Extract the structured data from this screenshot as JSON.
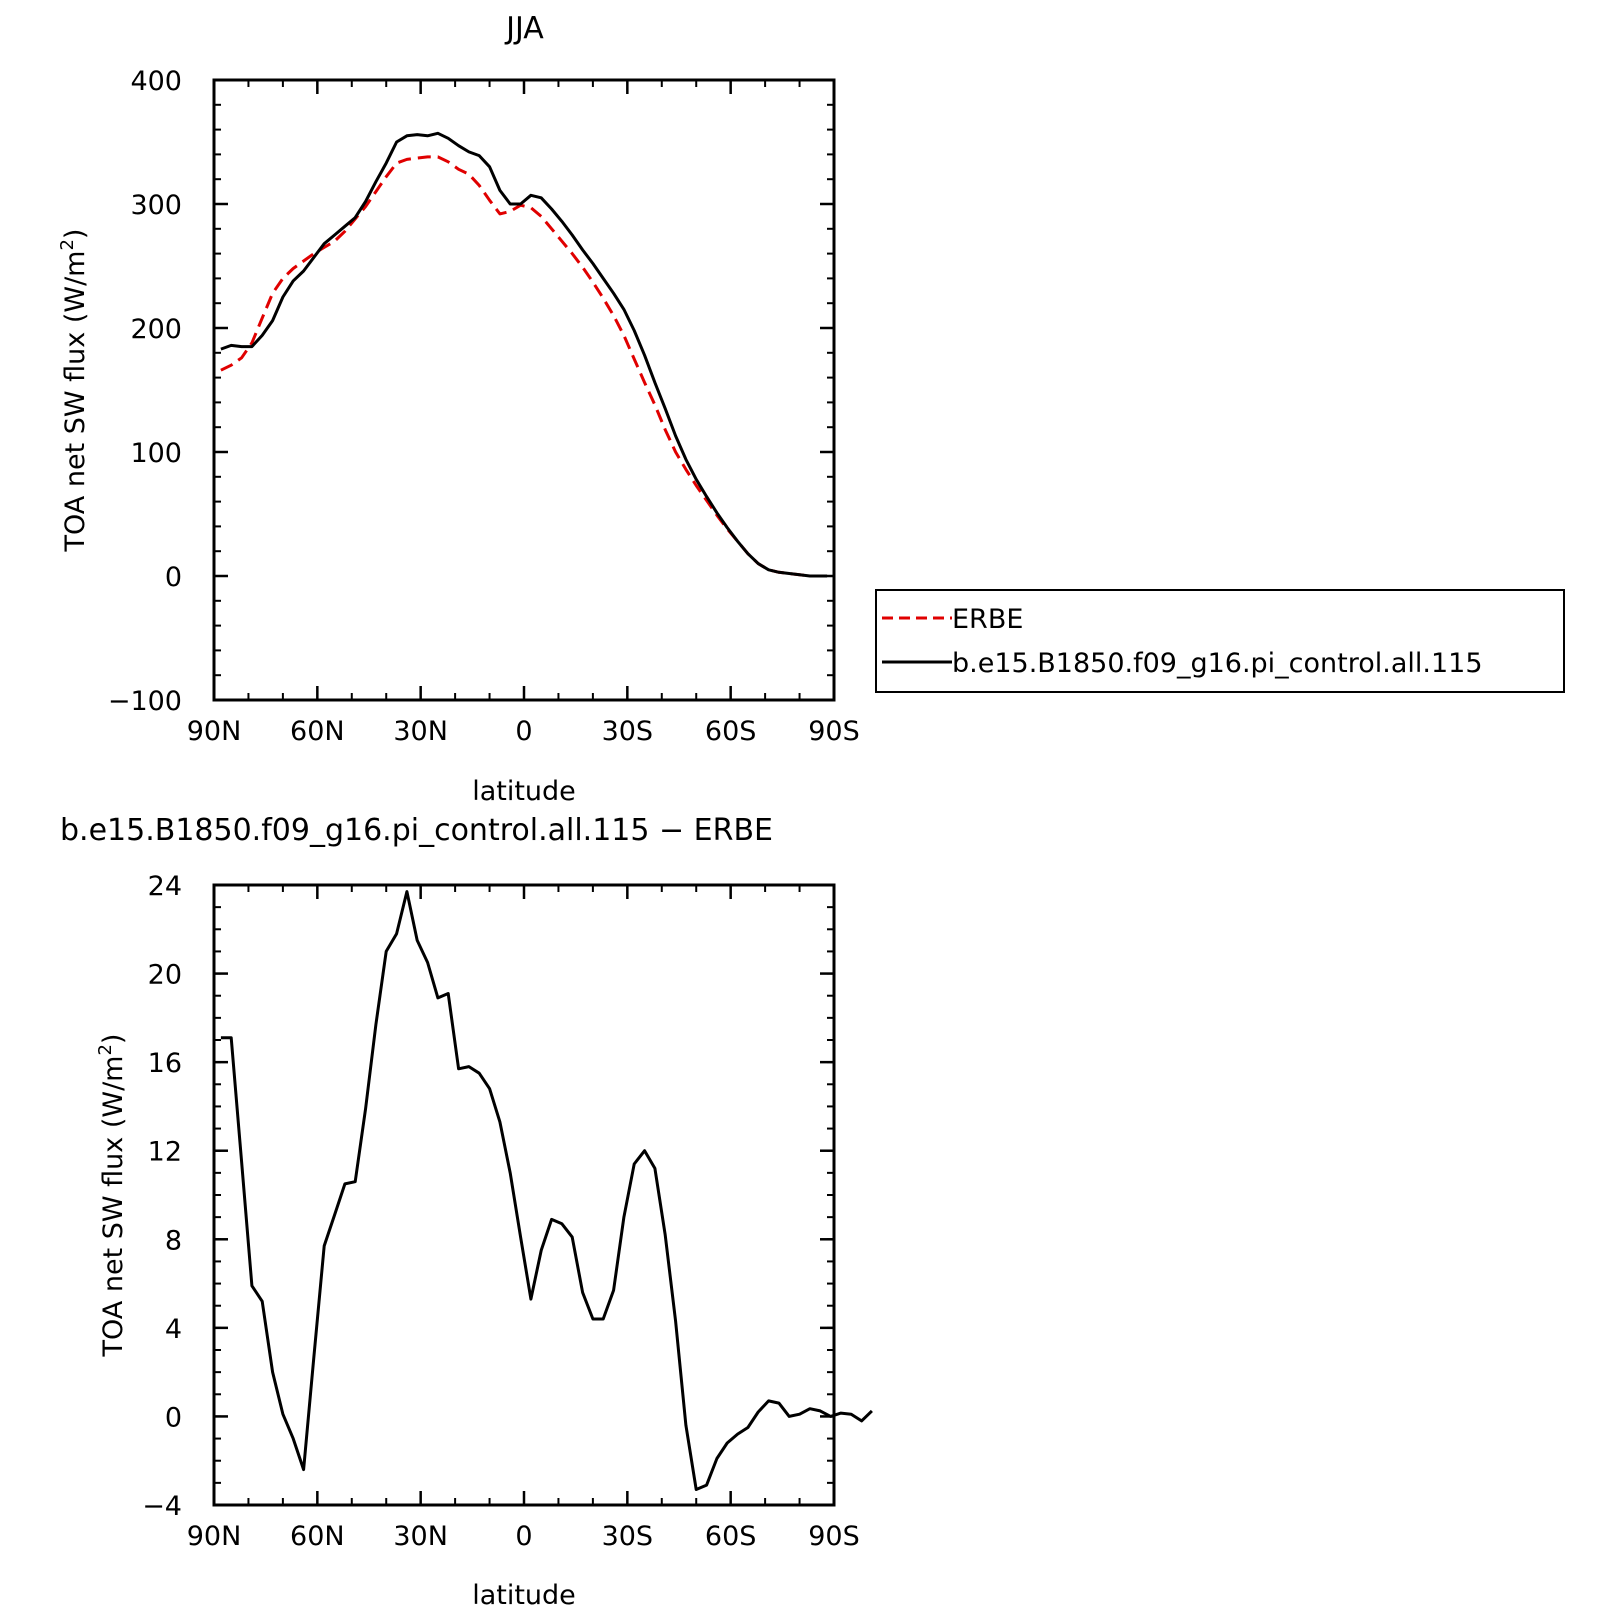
{
  "chart_data": [
    {
      "type": "line",
      "title": "JJA",
      "xlabel": "latitude",
      "ylabel": "TOA net SW flux (W/m²)",
      "ylabel_main": "TOA net SW flux (W/m",
      "ylabel_sup": "2",
      "ylabel_end": ")",
      "xlim": [
        90,
        -90
      ],
      "ylim": [
        -100,
        400
      ],
      "x_ticks": [
        {
          "value": 90,
          "label": "90N"
        },
        {
          "value": 60,
          "label": "60N"
        },
        {
          "value": 30,
          "label": "30N"
        },
        {
          "value": 0,
          "label": "0"
        },
        {
          "value": -30,
          "label": "30S"
        },
        {
          "value": -60,
          "label": "60S"
        },
        {
          "value": -90,
          "label": "90S"
        }
      ],
      "y_ticks": [
        {
          "value": -100,
          "label": "−100"
        },
        {
          "value": 0,
          "label": "0"
        },
        {
          "value": 100,
          "label": "100"
        },
        {
          "value": 200,
          "label": "200"
        },
        {
          "value": 300,
          "label": "300"
        },
        {
          "value": 400,
          "label": "400"
        }
      ],
      "legend": "right",
      "series": [
        {
          "name": "ERBE",
          "color": "#e00000",
          "dash": "dashed",
          "points": [
            [
              88,
              166
            ],
            [
              85,
              170
            ],
            [
              82,
              176
            ],
            [
              79,
              188
            ],
            [
              76,
              208
            ],
            [
              73,
              228
            ],
            [
              70,
              240
            ],
            [
              67,
              248
            ],
            [
              64,
              254
            ],
            [
              61,
              260
            ],
            [
              58,
              265
            ],
            [
              55,
              270
            ],
            [
              52,
              278
            ],
            [
              49,
              288
            ],
            [
              46,
              298
            ],
            [
              43,
              310
            ],
            [
              40,
              322
            ],
            [
              37,
              333
            ],
            [
              34,
              336
            ],
            [
              31,
              337
            ],
            [
              28,
              338
            ],
            [
              25,
              338
            ],
            [
              22,
              334
            ],
            [
              19,
              328
            ],
            [
              16,
              324
            ],
            [
              13,
              315
            ],
            [
              10,
              303
            ],
            [
              7,
              292
            ],
            [
              4,
              294
            ],
            [
              1,
              299
            ],
            [
              -2,
              297
            ],
            [
              -5,
              290
            ],
            [
              -8,
              280
            ],
            [
              -11,
              270
            ],
            [
              -14,
              260
            ],
            [
              -17,
              249
            ],
            [
              -20,
              237
            ],
            [
              -23,
              224
            ],
            [
              -26,
              210
            ],
            [
              -29,
              194
            ],
            [
              -32,
              175
            ],
            [
              -35,
              156
            ],
            [
              -38,
              138
            ],
            [
              -41,
              118
            ],
            [
              -44,
              100
            ],
            [
              -47,
              86
            ],
            [
              -50,
              73
            ],
            [
              -53,
              61
            ],
            [
              -56,
              49
            ],
            [
              -59,
              38
            ],
            [
              -62,
              28
            ],
            [
              -65,
              18
            ],
            [
              -68,
              10
            ],
            [
              -71,
              5
            ],
            [
              -74,
              3
            ],
            [
              -77,
              2
            ],
            [
              -80,
              1
            ],
            [
              -83,
              0
            ],
            [
              -86,
              0
            ],
            [
              -88,
              0
            ]
          ]
        },
        {
          "name": "b.e15.B1850.f09_g16.pi_control.all.115",
          "color": "#000000",
          "dash": "solid",
          "points": [
            [
              88,
              183
            ],
            [
              85,
              186
            ],
            [
              82,
              185
            ],
            [
              79,
              185
            ],
            [
              76,
              194
            ],
            [
              73,
              206
            ],
            [
              70,
              225
            ],
            [
              67,
              238
            ],
            [
              64,
              246
            ],
            [
              61,
              257
            ],
            [
              58,
              268
            ],
            [
              55,
              275
            ],
            [
              52,
              282
            ],
            [
              49,
              289
            ],
            [
              46,
              302
            ],
            [
              43,
              318
            ],
            [
              40,
              333
            ],
            [
              37,
              350
            ],
            [
              34,
              355
            ],
            [
              31,
              356
            ],
            [
              28,
              355
            ],
            [
              25,
              357
            ],
            [
              22,
              353
            ],
            [
              19,
              347
            ],
            [
              16,
              342
            ],
            [
              13,
              339
            ],
            [
              10,
              330
            ],
            [
              7,
              311
            ],
            [
              4,
              300
            ],
            [
              1,
              300
            ],
            [
              -2,
              307
            ],
            [
              -5,
              305
            ],
            [
              -8,
              296
            ],
            [
              -11,
              286
            ],
            [
              -14,
              275
            ],
            [
              -17,
              263
            ],
            [
              -20,
              252
            ],
            [
              -23,
              240
            ],
            [
              -26,
              228
            ],
            [
              -29,
              215
            ],
            [
              -32,
              198
            ],
            [
              -35,
              178
            ],
            [
              -38,
              156
            ],
            [
              -41,
              135
            ],
            [
              -44,
              113
            ],
            [
              -47,
              94
            ],
            [
              -50,
              78
            ],
            [
              -53,
              64
            ],
            [
              -56,
              51
            ],
            [
              -59,
              39
            ],
            [
              -62,
              28
            ],
            [
              -65,
              18
            ],
            [
              -68,
              10
            ],
            [
              -71,
              5
            ],
            [
              -74,
              3
            ],
            [
              -77,
              2
            ],
            [
              -80,
              1
            ],
            [
              -83,
              0
            ],
            [
              -86,
              0
            ],
            [
              -88,
              0
            ]
          ]
        }
      ]
    },
    {
      "type": "line",
      "title": "b.e15.B1850.f09_g16.pi_control.all.115 − ERBE",
      "xlabel": "latitude",
      "ylabel": "TOA net SW flux (W/m²)",
      "ylabel_main": "TOA net SW flux (W/m",
      "ylabel_sup": "2",
      "ylabel_end": ")",
      "xlim": [
        90,
        -90
      ],
      "ylim": [
        -4,
        24
      ],
      "x_ticks": [
        {
          "value": 90,
          "label": "90N"
        },
        {
          "value": 60,
          "label": "60N"
        },
        {
          "value": 30,
          "label": "30N"
        },
        {
          "value": 0,
          "label": "0"
        },
        {
          "value": -30,
          "label": "30S"
        },
        {
          "value": -60,
          "label": "60S"
        },
        {
          "value": -90,
          "label": "90S"
        }
      ],
      "y_ticks": [
        {
          "value": -4,
          "label": "−4"
        },
        {
          "value": 0,
          "label": "0"
        },
        {
          "value": 4,
          "label": "4"
        },
        {
          "value": 8,
          "label": "8"
        },
        {
          "value": 12,
          "label": "12"
        },
        {
          "value": 16,
          "label": "16"
        },
        {
          "value": 20,
          "label": "20"
        },
        {
          "value": 24,
          "label": "24"
        }
      ],
      "series": [
        {
          "color": "#000000",
          "dash": "solid",
          "points": [
            [
              88,
              17.1
            ],
            [
              85,
              17.1
            ],
            [
              82,
              11.5
            ],
            [
              79,
              5.9
            ],
            [
              76,
              5.2
            ],
            [
              73,
              2.0
            ],
            [
              70,
              0.1
            ],
            [
              67,
              -1.0
            ],
            [
              64,
              -2.4
            ],
            [
              61,
              2.7
            ],
            [
              58,
              7.7
            ],
            [
              55,
              9.1
            ],
            [
              52,
              10.5
            ],
            [
              49,
              10.6
            ],
            [
              46,
              13.9
            ],
            [
              43,
              17.7
            ],
            [
              40,
              21.0
            ],
            [
              37,
              21.8
            ],
            [
              34,
              23.7
            ],
            [
              31,
              21.5
            ],
            [
              28,
              20.5
            ],
            [
              25,
              18.9
            ],
            [
              22,
              19.1
            ],
            [
              19,
              15.7
            ],
            [
              16,
              15.8
            ],
            [
              13,
              15.5
            ],
            [
              10,
              14.8
            ],
            [
              7,
              13.3
            ],
            [
              4,
              11.0
            ],
            [
              1,
              8.1
            ],
            [
              -2,
              5.3
            ],
            [
              -5,
              7.5
            ],
            [
              -8,
              8.9
            ],
            [
              -11,
              8.7
            ],
            [
              -14,
              8.1
            ],
            [
              -17,
              5.6
            ],
            [
              -20,
              4.4
            ],
            [
              -23,
              4.4
            ],
            [
              -26,
              5.7
            ],
            [
              -29,
              9.0
            ],
            [
              -32,
              11.4
            ],
            [
              -35,
              12.0
            ],
            [
              -38,
              11.2
            ],
            [
              -41,
              8.2
            ],
            [
              -44,
              4.3
            ],
            [
              -47,
              -0.4
            ],
            [
              -50,
              -3.3
            ],
            [
              -53,
              -3.1
            ],
            [
              -56,
              -1.9
            ],
            [
              -59,
              -1.2
            ],
            [
              -62,
              -0.8
            ],
            [
              -65,
              -0.5
            ],
            [
              -68,
              0.2
            ],
            [
              -71,
              0.7
            ],
            [
              -74,
              0.6
            ],
            [
              -77,
              0.0
            ],
            [
              -80,
              0.1
            ],
            [
              -83,
              0.35
            ],
            [
              -86,
              0.25
            ],
            [
              -89,
              0.0
            ],
            [
              -92,
              0.15
            ],
            [
              -95,
              0.1
            ],
            [
              -98,
              -0.2
            ],
            [
              -101,
              0.25
            ]
          ]
        }
      ]
    }
  ]
}
